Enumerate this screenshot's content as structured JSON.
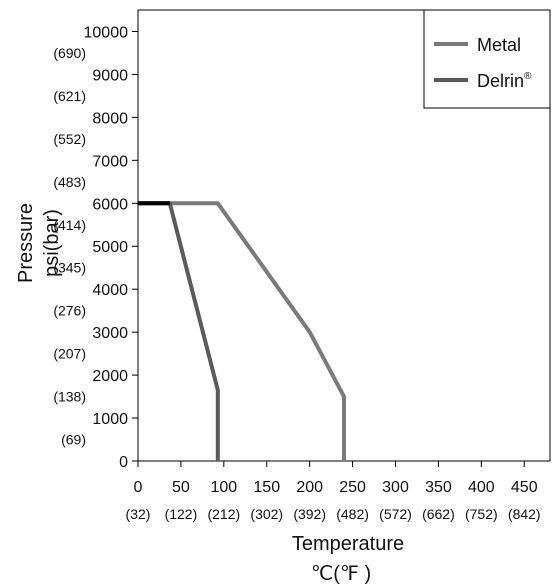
{
  "chart_data": {
    "type": "line",
    "title": "",
    "ylabel": "Pressure",
    "ylabel_units": "psi(bar)",
    "xlabel": "Temperature",
    "xlabel_units": "℃(℉ )",
    "xlim": [
      0,
      480
    ],
    "ylim": [
      0,
      10500
    ],
    "x_ticks": [
      0,
      50,
      100,
      150,
      200,
      250,
      300,
      350,
      400,
      450
    ],
    "x_tick_labels": [
      "0",
      "50",
      "100",
      "150",
      "200",
      "250",
      "300",
      "350",
      "400",
      "450"
    ],
    "x_tick_sublabels": [
      "(32)",
      "(122)",
      "(212)",
      "(302)",
      "(392)",
      "(482)",
      "(572)",
      "(662)",
      "(752)",
      "(842)"
    ],
    "y_ticks": [
      0,
      1000,
      2000,
      3000,
      4000,
      5000,
      6000,
      7000,
      8000,
      9000,
      10000
    ],
    "y_tick_labels": [
      "0",
      "1000",
      "2000",
      "3000",
      "4000",
      "5000",
      "6000",
      "7000",
      "8000",
      "9000",
      "10000"
    ],
    "y_tick_sublabels": [
      "(69)",
      "(138)",
      "(207)",
      "(276)",
      "(345)",
      "(414)",
      "(483)",
      "(552)",
      "(621)",
      "(690)"
    ],
    "grid": false,
    "legend_position": "top-right",
    "series": [
      {
        "name": "Metal",
        "color": "#7a7a7a",
        "x": [
          0,
          93,
          200,
          240,
          240
        ],
        "y": [
          6000,
          6000,
          3000,
          1500,
          0
        ]
      },
      {
        "name": "Delrin",
        "name_suffix": "®",
        "color": "#5a5a5a",
        "x": [
          0,
          37,
          93,
          93
        ],
        "y": [
          6000,
          6000,
          1650,
          0
        ]
      }
    ],
    "overlap_segment": {
      "color": "#000000",
      "x": [
        0,
        37
      ],
      "y": [
        6000,
        6000
      ]
    }
  }
}
